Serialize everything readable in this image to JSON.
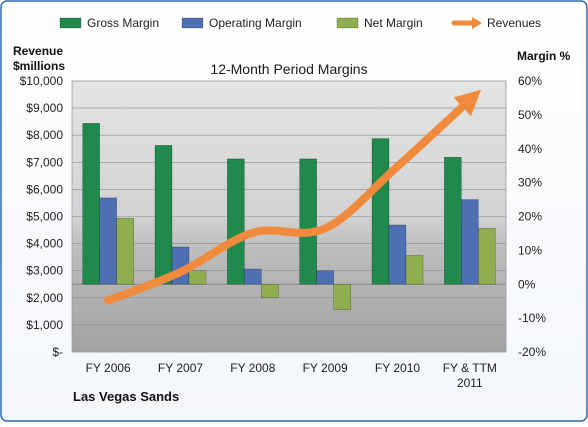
{
  "chart_data": {
    "type": "bar",
    "title": "12-Month Period Margins",
    "company": "Las Vegas Sands",
    "left_axis_label": [
      "Revenue",
      "$millions"
    ],
    "right_axis_label": "Margin %",
    "categories": [
      [
        "FY 2006"
      ],
      [
        "FY 2007"
      ],
      [
        "FY 2008"
      ],
      [
        "FY 2009"
      ],
      [
        "FY 2010"
      ],
      [
        "FY & TTM",
        "2011"
      ]
    ],
    "left_axis": {
      "min": 0,
      "max": 10000,
      "step": 1000,
      "tick_labels": [
        "$-",
        "$1,000",
        "$2,000",
        "$3,000",
        "$4,000",
        "$5,000",
        "$6,000",
        "$7,000",
        "$8,000",
        "$9,000",
        "$10,000"
      ]
    },
    "right_axis": {
      "min": -20,
      "max": 60,
      "step": 10,
      "tick_labels": [
        "-20%",
        "-10%",
        "0%",
        "10%",
        "20%",
        "30%",
        "40%",
        "50%",
        "60%"
      ]
    },
    "series": [
      {
        "name": "Gross Margin",
        "kind": "bar",
        "axis": "right",
        "color": "#1f8a4c",
        "values": [
          47.5,
          41,
          37,
          37,
          43,
          37.5
        ]
      },
      {
        "name": "Operating Margin",
        "kind": "bar",
        "axis": "right",
        "color": "#4f6fb3",
        "values": [
          25.5,
          11,
          4.5,
          4,
          17.5,
          25
        ]
      },
      {
        "name": "Net Margin",
        "kind": "bar",
        "axis": "right",
        "color": "#8fae4f",
        "values": [
          19.5,
          4,
          -4,
          -7.5,
          8.5,
          16.5
        ]
      },
      {
        "name": "Revenues",
        "kind": "line",
        "axis": "left",
        "color": "#f08a3c",
        "values": [
          1900,
          2950,
          4400,
          4560,
          6850,
          9300
        ]
      }
    ],
    "grid": true,
    "legend_position": "top"
  }
}
